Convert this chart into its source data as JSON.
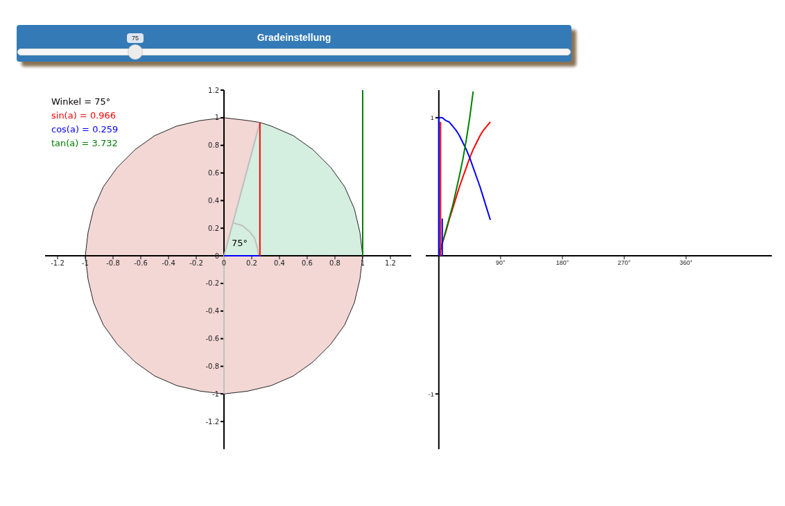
{
  "chart_data": [
    {
      "type": "other",
      "title": "Gradeinstellung",
      "annotations": [
        "75"
      ]
    },
    {
      "type": "line",
      "xlim": [
        -1.29,
        1.35
      ],
      "ylim": [
        -1.4,
        1.2
      ],
      "xticks": [
        -1.2,
        -1,
        -0.8,
        -0.6,
        -0.4,
        -0.2,
        0,
        0.2,
        0.4,
        0.6,
        0.8,
        1,
        1.2
      ],
      "yticks": [
        -1.2,
        -1,
        -0.8,
        -0.6,
        -0.4,
        -0.2,
        0,
        0.2,
        0.4,
        0.6,
        0.8,
        1,
        1.2
      ],
      "legend": "top left",
      "legend_title": "Winkel = 75°",
      "annotations": [
        "75°"
      ],
      "series": [
        {
          "type": "area",
          "color": "#f2d7d5",
          "x": [
            -1,
            -0.98,
            -0.94,
            -0.87,
            -0.77,
            -0.64,
            -0.5,
            -0.34,
            -0.17,
            0,
            0.17,
            0.259
          ],
          "values": [
            0,
            0.17,
            0.34,
            0.5,
            0.64,
            0.77,
            0.87,
            0.94,
            0.98,
            1,
            0.98,
            0.966
          ]
        },
        {
          "type": "area",
          "color": "#f2d7d5",
          "x": [
            -1,
            -0.98,
            -0.94,
            -0.87,
            -0.77,
            -0.64,
            -0.5,
            -0.34,
            -0.17,
            0,
            0.17,
            0.34,
            0.5,
            0.64,
            0.77,
            0.87,
            0.94,
            0.98,
            1
          ],
          "values": [
            0,
            -0.17,
            -0.34,
            -0.5,
            -0.64,
            -0.77,
            -0.87,
            -0.94,
            -0.98,
            -1,
            -0.98,
            -0.94,
            -0.87,
            -0.77,
            -0.64,
            -0.5,
            -0.34,
            -0.17,
            0
          ]
        },
        {
          "type": "area",
          "color": "#d4eee0",
          "x": [
            0,
            0.259,
            0.34,
            0.5,
            0.64,
            0.77,
            0.87,
            0.94,
            0.98,
            1
          ],
          "values": [
            0,
            0.966,
            0.94,
            0.87,
            0.77,
            0.64,
            0.5,
            0.34,
            0.17,
            0
          ]
        },
        {
          "type": "line",
          "color": "#c0c0c0",
          "x": [
            0,
            0,
            0.259
          ],
          "values": [
            -1,
            0,
            0.966
          ]
        },
        {
          "type": "line",
          "color": "#c0c0c0",
          "x": [
            0.25,
            0.24,
            0.22,
            0.18,
            0.13,
            0.06
          ],
          "values": [
            0,
            0.06,
            0.13,
            0.18,
            0.22,
            0.24
          ]
        },
        {
          "type": "line",
          "name": "sin(a) = 0.966",
          "color": "#ff0000",
          "x": [
            0.259,
            0.259
          ],
          "values": [
            0,
            0.966
          ]
        },
        {
          "type": "line",
          "name": "cos(a) = 0.259",
          "color": "#0000ff",
          "x": [
            0,
            0.259
          ],
          "values": [
            0,
            0
          ]
        },
        {
          "type": "line",
          "name": "tan(a) = 3.732",
          "color": "#008000",
          "x": [
            1,
            1
          ],
          "values": [
            0,
            1.2
          ]
        }
      ]
    },
    {
      "type": "line",
      "xlim": [
        -19,
        485
      ],
      "ylim": [
        -1.4,
        1.2
      ],
      "xticks": [
        {
          "value": 90,
          "label": "90°"
        },
        {
          "value": 180,
          "label": "180°"
        },
        {
          "value": 270,
          "label": "270°"
        },
        {
          "value": 360,
          "label": "360°"
        }
      ],
      "yticks": [
        -1,
        1
      ],
      "series": [
        {
          "type": "line",
          "color": "#ff0000",
          "x": [
            0,
            5,
            10,
            15,
            20,
            25,
            30,
            35,
            40,
            45,
            50,
            55,
            60,
            65,
            70,
            75
          ],
          "values": [
            0,
            0.09,
            0.17,
            0.26,
            0.34,
            0.42,
            0.5,
            0.57,
            0.64,
            0.71,
            0.77,
            0.82,
            0.87,
            0.91,
            0.94,
            0.97
          ]
        },
        {
          "type": "line",
          "color": "#0000ff",
          "x": [
            0,
            5,
            10,
            15,
            20,
            25,
            30,
            35,
            40,
            45,
            50,
            55,
            60,
            65,
            70,
            75
          ],
          "values": [
            1,
            1,
            0.98,
            0.97,
            0.94,
            0.91,
            0.87,
            0.82,
            0.77,
            0.71,
            0.64,
            0.57,
            0.5,
            0.42,
            0.34,
            0.26
          ]
        },
        {
          "type": "line",
          "color": "#008000",
          "x": [
            0,
            5,
            10,
            15,
            20,
            25,
            30,
            35,
            40,
            45,
            50
          ],
          "values": [
            0,
            0.09,
            0.18,
            0.27,
            0.36,
            0.47,
            0.58,
            0.7,
            0.84,
            1,
            1.19
          ]
        },
        {
          "type": "line",
          "color": "#0000ff",
          "x": [
            0,
            0
          ],
          "values": [
            0,
            1
          ]
        },
        {
          "type": "line",
          "color": "#ff0000",
          "x": [
            2.5,
            2.5
          ],
          "values": [
            0,
            0.97
          ]
        },
        {
          "type": "line",
          "color": "#0000ff",
          "x": [
            5,
            5
          ],
          "values": [
            0,
            0.27
          ]
        }
      ]
    }
  ]
}
